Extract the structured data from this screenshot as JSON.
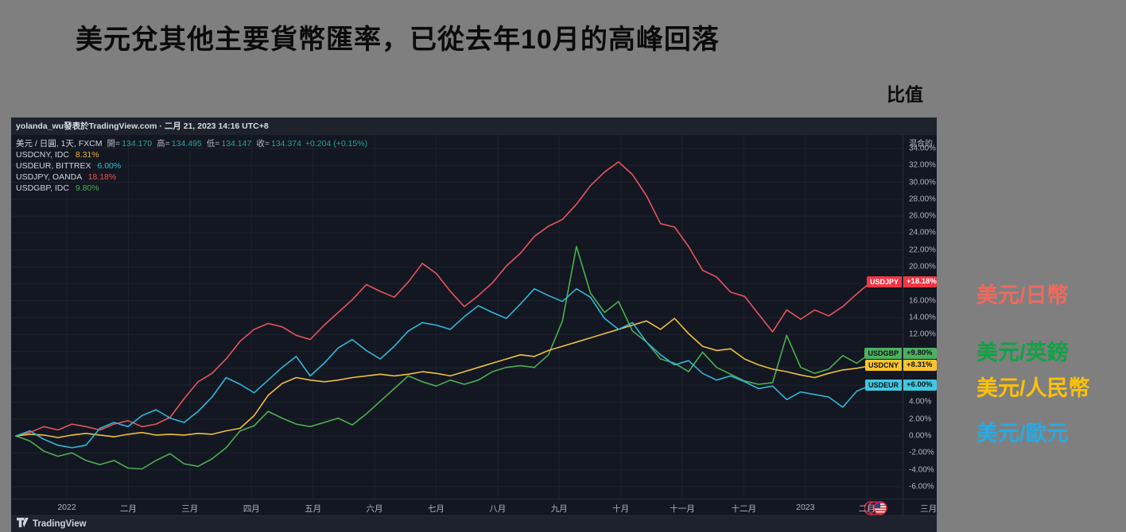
{
  "slide": {
    "title": "美元兌其他主要貨幣匯率，已從去年10月的高峰回落",
    "axis_note": "比值",
    "background_color": "#7f7f7f"
  },
  "right_labels": [
    {
      "text": "美元/日幣",
      "color": "#ee6a5f"
    },
    {
      "text": "美元/英鎊",
      "color": "#10a244"
    },
    {
      "text": "美元/人民幣",
      "color": "#fdc108"
    },
    {
      "text": "美元/歐元",
      "color": "#2ba9e0"
    }
  ],
  "chart": {
    "attribution": "yolanda_wu發表於TradingView.com · 二月 21, 2023 14:16 UTC+8",
    "scale_mode": "混合的",
    "footer_brand": "TradingView",
    "flag_icon": "overlapping-currency-flags-us-front",
    "legend": {
      "main": {
        "symbol_label": "美元 / 日圓, 1天, FXCM",
        "ohlc": [
          {
            "label": "開",
            "value": "134.170"
          },
          {
            "label": "高",
            "value": "134.495"
          },
          {
            "label": "低",
            "value": "134.147"
          },
          {
            "label": "收",
            "value": "134.374"
          }
        ],
        "change": "+0.204 (+0.15%)",
        "value_color": "#26a69a"
      },
      "indicators": [
        {
          "name": "USDCNY, IDC",
          "value": "8.31%",
          "color": "#e8b43c"
        },
        {
          "name": "USDEUR, BITTREX",
          "value": "6.00%",
          "color": "#2fc1d4"
        },
        {
          "name": "USDJPY, OANDA",
          "value": "18.18%",
          "color": "#ef5350"
        },
        {
          "name": "USDGBP, IDC",
          "value": "9.80%",
          "color": "#4caf50"
        }
      ]
    },
    "badges": [
      {
        "symbol": "USDJPY",
        "label": "+18.18%",
        "value": 18.18,
        "bg": "#f23645",
        "fg": "#ffffff"
      },
      {
        "symbol": "USDGBP",
        "label": "+9.80%",
        "value": 9.8,
        "bg": "#4db05f",
        "fg": "#10131a"
      },
      {
        "symbol": "USDCNY",
        "label": "+8.31%",
        "value": 8.31,
        "bg": "#fcc42c",
        "fg": "#10131a"
      },
      {
        "symbol": "USDEUR",
        "label": "+6.00%",
        "value": 6.0,
        "bg": "#3fc9e0",
        "fg": "#10131a"
      }
    ]
  },
  "chart_data": {
    "type": "line",
    "title": "美元兌其他主要貨幣匯率（比值，%變動）",
    "sampling": "weekly points read from chart, Dec 2021 – Feb 21 2023",
    "x_axis": {
      "ticks": [
        "2022",
        "二月",
        "三月",
        "四月",
        "五月",
        "六月",
        "七月",
        "八月",
        "九月",
        "十月",
        "十一月",
        "十二月",
        "2023",
        "二月",
        "三月"
      ]
    },
    "y_axis": {
      "unit": "%",
      "min": -6,
      "max": 34,
      "step": 2,
      "grid": true,
      "tick_labels": [
        "34.00%",
        "32.00%",
        "30.00%",
        "28.00%",
        "26.00%",
        "24.00%",
        "22.00%",
        "20.00%",
        "18.00%",
        "16.00%",
        "14.00%",
        "12.00%",
        "10.00%",
        "8.00%",
        "6.00%",
        "4.00%",
        "2.00%",
        "0.00%",
        "-2.00%",
        "-4.00%",
        "-6.00%"
      ]
    },
    "legend_position": "top-left",
    "series": [
      {
        "name": "USDJPY",
        "source": "OANDA",
        "color": "#e8545b",
        "final_label": "+18.18%",
        "values": [
          0.0,
          0.4,
          1.1,
          0.7,
          1.4,
          1.1,
          0.7,
          1.4,
          1.8,
          1.1,
          1.4,
          2.2,
          4.4,
          6.4,
          7.4,
          9.1,
          11.2,
          12.6,
          13.3,
          12.9,
          11.9,
          11.4,
          13.1,
          14.6,
          16.1,
          17.9,
          17.1,
          16.4,
          18.2,
          20.4,
          19.2,
          17.1,
          15.3,
          16.6,
          18.1,
          20.1,
          21.6,
          23.6,
          24.8,
          25.6,
          27.4,
          29.6,
          31.2,
          32.4,
          30.9,
          28.4,
          25.1,
          24.7,
          22.4,
          19.6,
          18.8,
          17.0,
          16.5,
          14.4,
          12.3,
          14.9,
          13.8,
          14.9,
          14.2,
          15.3,
          16.8,
          18.18
        ]
      },
      {
        "name": "USDGBP",
        "source": "IDC",
        "color": "#4caf50",
        "final_label": "+9.80%",
        "values": [
          0.0,
          -0.6,
          -1.8,
          -2.4,
          -2.0,
          -2.9,
          -3.4,
          -2.9,
          -3.8,
          -3.9,
          -2.9,
          -2.1,
          -3.3,
          -3.6,
          -2.7,
          -1.4,
          0.6,
          1.2,
          2.9,
          2.1,
          1.4,
          1.1,
          1.6,
          2.1,
          1.3,
          2.6,
          4.1,
          5.6,
          7.1,
          6.4,
          5.9,
          6.6,
          6.1,
          6.6,
          7.6,
          8.1,
          8.3,
          8.1,
          9.6,
          13.6,
          22.4,
          16.9,
          14.6,
          15.9,
          12.4,
          11.1,
          9.1,
          8.6,
          7.6,
          9.9,
          8.1,
          7.3,
          6.5,
          6.1,
          6.3,
          11.9,
          8.1,
          7.4,
          7.9,
          9.5,
          8.6,
          9.8
        ]
      },
      {
        "name": "USDCNY",
        "source": "IDC",
        "color": "#efbf3e",
        "final_label": "+8.31%",
        "values": [
          0.0,
          0.2,
          0.1,
          -0.2,
          0.1,
          0.3,
          0.1,
          -0.1,
          0.2,
          0.4,
          0.1,
          0.2,
          0.1,
          0.3,
          0.2,
          0.6,
          0.9,
          2.4,
          4.8,
          6.2,
          6.9,
          6.6,
          6.4,
          6.6,
          6.9,
          7.1,
          7.3,
          7.1,
          7.3,
          7.6,
          7.4,
          7.1,
          7.6,
          8.1,
          8.6,
          9.1,
          9.6,
          9.4,
          10.1,
          10.6,
          11.1,
          11.6,
          12.1,
          12.6,
          13.1,
          13.6,
          12.6,
          13.9,
          12.1,
          10.6,
          10.1,
          10.3,
          9.1,
          8.4,
          7.9,
          7.6,
          7.2,
          6.9,
          7.4,
          7.8,
          8.0,
          8.31
        ]
      },
      {
        "name": "USDEUR",
        "source": "BITTREX",
        "color": "#2fb8d9",
        "final_label": "+6.00%",
        "values": [
          0.0,
          0.6,
          -0.4,
          -1.1,
          -1.4,
          -1.1,
          0.9,
          1.6,
          1.1,
          2.4,
          3.1,
          2.1,
          1.6,
          2.9,
          4.6,
          6.9,
          6.1,
          5.1,
          6.6,
          8.1,
          9.4,
          7.1,
          8.6,
          10.4,
          11.4,
          10.1,
          9.1,
          10.6,
          12.4,
          13.4,
          13.1,
          12.6,
          14.1,
          15.4,
          14.6,
          13.9,
          15.6,
          17.4,
          16.6,
          15.9,
          17.4,
          16.4,
          13.9,
          12.6,
          13.4,
          11.1,
          9.6,
          8.4,
          8.9,
          7.4,
          6.6,
          7.1,
          6.4,
          5.6,
          5.9,
          4.3,
          5.2,
          4.9,
          4.6,
          3.4,
          5.3,
          6.0
        ]
      }
    ],
    "main_series_ohlc": {
      "open": 134.17,
      "high": 134.495,
      "low": 134.147,
      "close": 134.374,
      "change": 0.204,
      "change_pct": 0.15
    }
  }
}
